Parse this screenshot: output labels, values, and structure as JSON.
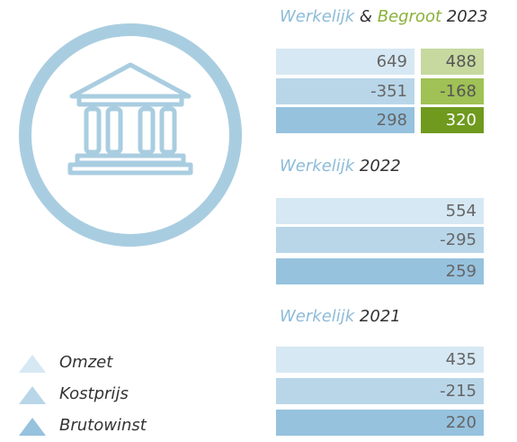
{
  "sections": [
    {
      "label": "Werkelijk",
      "connector": "&",
      "label2": "Begroot",
      "year": "2023",
      "rows": [
        [
          649,
          488
        ],
        [
          -351,
          -168
        ],
        [
          298,
          320
        ]
      ]
    },
    {
      "label": "Werkelijk",
      "year": "2022",
      "rows": [
        [
          554
        ],
        [
          -295
        ],
        [
          259
        ]
      ]
    },
    {
      "label": "Werkelijk",
      "year": "2021",
      "rows": [
        [
          435
        ],
        [
          -215
        ],
        [
          220
        ]
      ]
    }
  ],
  "legend": [
    "Omzet",
    "Kostprijs",
    "Brutowinst"
  ]
}
